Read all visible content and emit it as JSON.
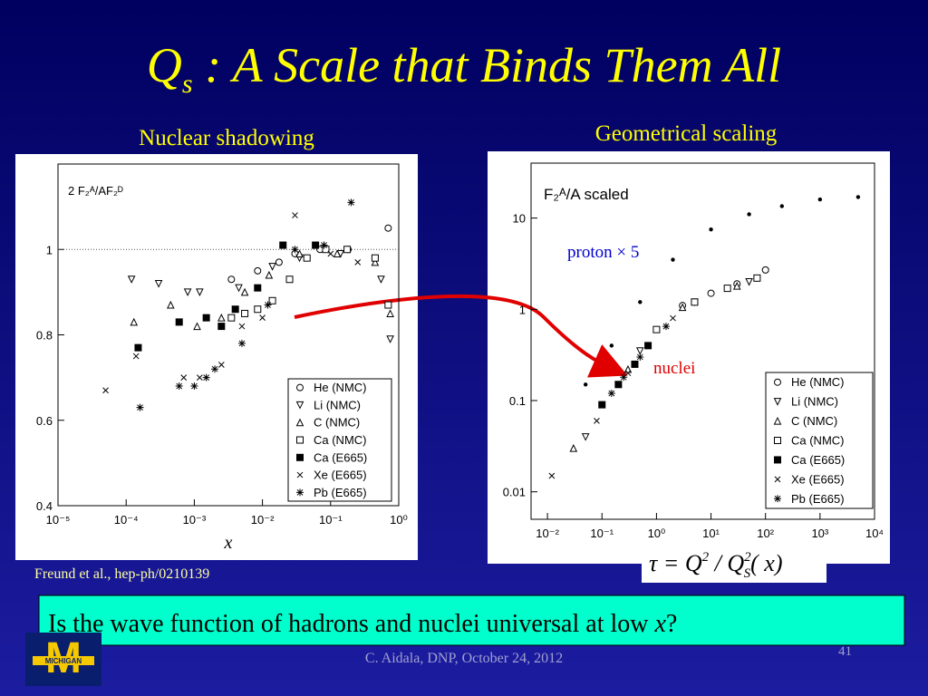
{
  "title": {
    "main": "Q",
    "sub": "s",
    "rest": " : A Scale that Binds Them All"
  },
  "left_caption": "Nuclear shadowing",
  "right_caption": "Geometrical scaling",
  "citation": "Freund et al.,  hep-ph/0210139",
  "formula": {
    "lhs": "τ = Q",
    "sup1": "2",
    "mid": " / Q",
    "sup2": "2",
    "sub": "S",
    "arg": "( x)"
  },
  "question": {
    "text": "Is the wave function of hadrons and nuclei universal at low ",
    "var": "x",
    "end": "?"
  },
  "footer": "C. Aidala, DNP, October 24, 2012",
  "page_number": "41",
  "logo": {
    "letter": "M",
    "name": "MICHIGAN"
  },
  "chart_data": [
    {
      "type": "scatter",
      "x_label": "x",
      "y_label": "2 F₂ᴬ/AF₂ᴰ",
      "x_log": true,
      "y_log": false,
      "xlim": [
        1e-05,
        1
      ],
      "ylim": [
        0.4,
        1.2
      ],
      "xticks": [
        {
          "value": 1e-05,
          "label": "10⁻⁵"
        },
        {
          "value": 0.0001,
          "label": "10⁻⁴"
        },
        {
          "value": 0.001,
          "label": "10⁻³"
        },
        {
          "value": 0.01,
          "label": "10⁻²"
        },
        {
          "value": 0.1,
          "label": "10⁻¹"
        },
        {
          "value": 1,
          "label": "10⁰"
        }
      ],
      "yticks": [
        0.4,
        0.6,
        0.8,
        1
      ],
      "reference_line": 1,
      "series": [
        {
          "name": "He (NMC)",
          "marker": "circle",
          "color": "#000000",
          "values": [
            [
              0.0035,
              0.93
            ],
            [
              0.0085,
              0.95
            ],
            [
              0.0175,
              0.97
            ],
            [
              0.03,
              0.99
            ],
            [
              0.07,
              1.0
            ],
            [
              0.18,
              1.0
            ],
            [
              0.7,
              1.05
            ]
          ]
        },
        {
          "name": "Li (NMC)",
          "marker": "triangle-down",
          "color": "#000000",
          "values": [
            [
              0.00012,
              0.93
            ],
            [
              0.0003,
              0.92
            ],
            [
              0.0008,
              0.9
            ],
            [
              0.0012,
              0.9
            ],
            [
              0.0045,
              0.91
            ],
            [
              0.014,
              0.96
            ],
            [
              0.035,
              0.98
            ],
            [
              0.14,
              0.99
            ],
            [
              0.55,
              0.93
            ],
            [
              0.75,
              0.79
            ]
          ]
        },
        {
          "name": "C (NMC)",
          "marker": "triangle-up",
          "color": "#000000",
          "values": [
            [
              0.00013,
              0.83
            ],
            [
              0.00045,
              0.87
            ],
            [
              0.0011,
              0.82
            ],
            [
              0.0025,
              0.84
            ],
            [
              0.0055,
              0.9
            ],
            [
              0.0125,
              0.94
            ],
            [
              0.035,
              0.99
            ],
            [
              0.125,
              0.99
            ],
            [
              0.45,
              0.97
            ],
            [
              0.75,
              0.85
            ]
          ]
        },
        {
          "name": "Ca (NMC)",
          "marker": "square",
          "color": "#000000",
          "values": [
            [
              0.0035,
              0.84
            ],
            [
              0.0055,
              0.85
            ],
            [
              0.0085,
              0.86
            ],
            [
              0.014,
              0.88
            ],
            [
              0.025,
              0.93
            ],
            [
              0.045,
              0.98
            ],
            [
              0.085,
              1.0
            ],
            [
              0.175,
              1.0
            ],
            [
              0.45,
              0.98
            ],
            [
              0.7,
              0.87
            ]
          ]
        },
        {
          "name": "Ca (E665)",
          "marker": "square-filled",
          "color": "#000000",
          "values": [
            [
              0.00015,
              0.77
            ],
            [
              0.0006,
              0.83
            ],
            [
              0.0015,
              0.84
            ],
            [
              0.0025,
              0.82
            ],
            [
              0.004,
              0.86
            ],
            [
              0.0085,
              0.91
            ],
            [
              0.02,
              1.01
            ],
            [
              0.06,
              1.01
            ]
          ]
        },
        {
          "name": "Xe (E665)",
          "marker": "x",
          "color": "#000000",
          "values": [
            [
              5e-05,
              0.67
            ],
            [
              0.00014,
              0.75
            ],
            [
              0.0007,
              0.7
            ],
            [
              0.0012,
              0.7
            ],
            [
              0.0025,
              0.73
            ],
            [
              0.005,
              0.82
            ],
            [
              0.01,
              0.84
            ],
            [
              0.03,
              1.08
            ],
            [
              0.1,
              0.99
            ],
            [
              0.25,
              0.97
            ]
          ]
        },
        {
          "name": "Pb (E665)",
          "marker": "star",
          "color": "#000000",
          "values": [
            [
              0.00016,
              0.63
            ],
            [
              0.0006,
              0.68
            ],
            [
              0.001,
              0.68
            ],
            [
              0.0015,
              0.7
            ],
            [
              0.002,
              0.72
            ],
            [
              0.005,
              0.78
            ],
            [
              0.012,
              0.87
            ],
            [
              0.03,
              1.0
            ],
            [
              0.08,
              1.01
            ],
            [
              0.2,
              1.11
            ]
          ]
        }
      ]
    },
    {
      "type": "scatter",
      "x_log": true,
      "y_log": true,
      "annotations": [
        "F₂ᴬ/A  scaled",
        "nuclei"
      ],
      "xlim": [
        0.005,
        10000
      ],
      "ylim": [
        0.005,
        40
      ],
      "xticks": [
        {
          "value": 0.01,
          "label": "10⁻²"
        },
        {
          "value": 0.1,
          "label": "10⁻¹"
        },
        {
          "value": 1,
          "label": "10⁰"
        },
        {
          "value": 10,
          "label": "10¹"
        },
        {
          "value": 100,
          "label": "10²"
        },
        {
          "value": 1000,
          "label": "10³"
        },
        {
          "value": 10000,
          "label": "10⁴"
        }
      ],
      "yticks": [
        0.01,
        0.1,
        1,
        10
      ],
      "series": [
        {
          "name": "He (NMC)",
          "marker": "circle",
          "color": "#000000",
          "values": [
            [
              3,
              1.1
            ],
            [
              10,
              1.5
            ],
            [
              30,
              1.9
            ],
            [
              100,
              2.7
            ]
          ]
        },
        {
          "name": "Li (NMC)",
          "marker": "triangle-down",
          "color": "#000000",
          "values": [
            [
              0.05,
              0.04
            ],
            [
              0.5,
              0.35
            ],
            [
              5,
              1.2
            ],
            [
              50,
              2.0
            ]
          ]
        },
        {
          "name": "C (NMC)",
          "marker": "triangle-up",
          "color": "#000000",
          "values": [
            [
              0.03,
              0.03
            ],
            [
              0.3,
              0.22
            ],
            [
              3,
              1.05
            ],
            [
              30,
              1.8
            ]
          ]
        },
        {
          "name": "Ca (NMC)",
          "marker": "square",
          "color": "#000000",
          "values": [
            [
              1,
              0.6
            ],
            [
              5,
              1.2
            ],
            [
              20,
              1.7
            ],
            [
              70,
              2.2
            ]
          ]
        },
        {
          "name": "Ca (E665)",
          "marker": "square-filled",
          "color": "#000000",
          "values": [
            [
              0.1,
              0.09
            ],
            [
              0.2,
              0.15
            ],
            [
              0.4,
              0.25
            ],
            [
              0.7,
              0.4
            ]
          ]
        },
        {
          "name": "Xe (E665)",
          "marker": "x",
          "color": "#000000",
          "values": [
            [
              0.012,
              0.015
            ],
            [
              0.08,
              0.06
            ],
            [
              0.3,
              0.2
            ],
            [
              2,
              0.8
            ]
          ]
        },
        {
          "name": "Pb (E665)",
          "marker": "star",
          "color": "#000000",
          "values": [
            [
              0.15,
              0.12
            ],
            [
              0.25,
              0.18
            ],
            [
              0.5,
              0.3
            ],
            [
              1.5,
              0.65
            ]
          ]
        }
      ],
      "proton": {
        "name": "proton × 5",
        "marker": "dot",
        "color": "#000000",
        "label_color": "#0000cc",
        "values": [
          [
            0.05,
            0.15
          ],
          [
            0.15,
            0.4
          ],
          [
            0.5,
            1.2
          ],
          [
            2,
            3.5
          ],
          [
            10,
            7.5
          ],
          [
            50,
            11
          ],
          [
            200,
            13.5
          ],
          [
            1000,
            16
          ],
          [
            5000,
            17
          ]
        ]
      }
    }
  ]
}
